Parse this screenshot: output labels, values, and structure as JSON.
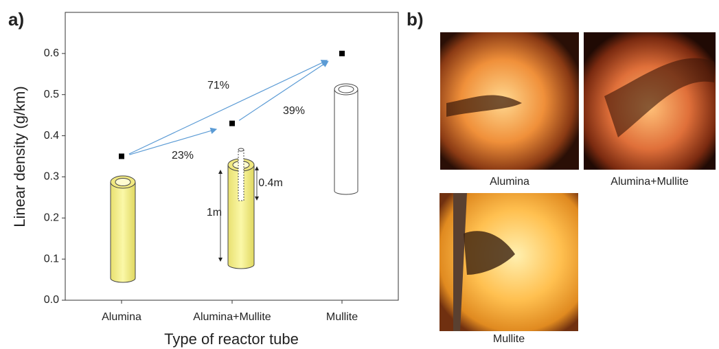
{
  "chart_data": {
    "type": "scatter",
    "panel_labels": [
      "a)",
      "b)"
    ],
    "categories": [
      "Alumina",
      "Alumina+Mullite",
      "Mullite"
    ],
    "values": [
      0.35,
      0.43,
      0.6
    ],
    "color": "#000000",
    "ylim": [
      0,
      0.7
    ],
    "yticks": [
      {
        "value": 0,
        "label": "0.0"
      },
      0.1,
      0.2,
      0.3,
      0.4,
      0.5,
      0.6
    ],
    "ylabel": "Linear density (g/km)",
    "xlabel": "Type of reactor tube",
    "annotations": [
      "71%",
      "23%",
      "39%",
      "1m",
      "0.4m"
    ],
    "photo_captions": [
      "Alumina",
      "Alumina+Mullite",
      "Mullite"
    ]
  }
}
